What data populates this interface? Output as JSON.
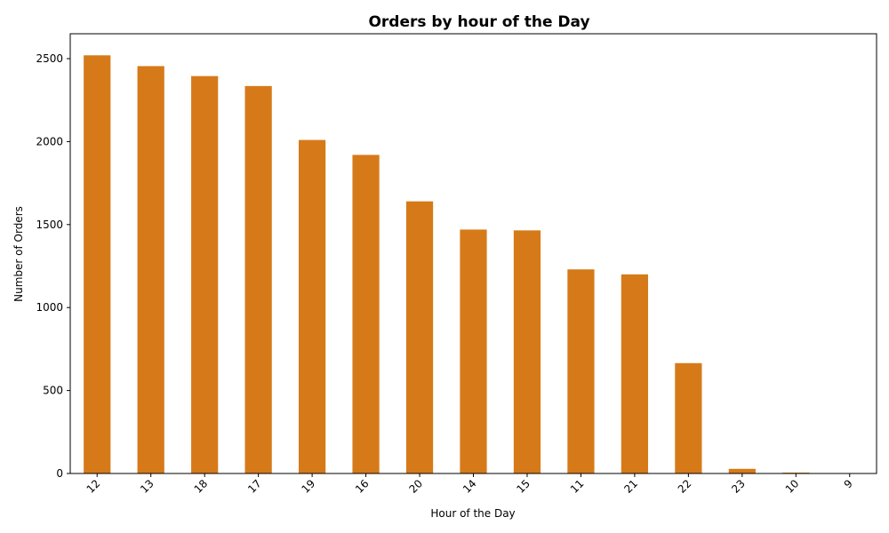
{
  "chart_data": {
    "type": "bar",
    "title": "Orders by hour of the Day",
    "xlabel": "Hour of the Day",
    "ylabel": "Number of Orders",
    "categories": [
      "12",
      "13",
      "18",
      "17",
      "19",
      "16",
      "20",
      "14",
      "15",
      "11",
      "21",
      "22",
      "23",
      "10",
      "9"
    ],
    "values": [
      2520,
      2455,
      2395,
      2335,
      2010,
      1920,
      1640,
      1470,
      1465,
      1230,
      1200,
      665,
      28,
      5,
      1
    ],
    "ylim": [
      0,
      2650
    ],
    "yticks": [
      0,
      500,
      1000,
      1500,
      2000,
      2500
    ],
    "bar_color": "#d67a19",
    "grid": false,
    "legend": "none",
    "x_tick_rotation": 45
  }
}
